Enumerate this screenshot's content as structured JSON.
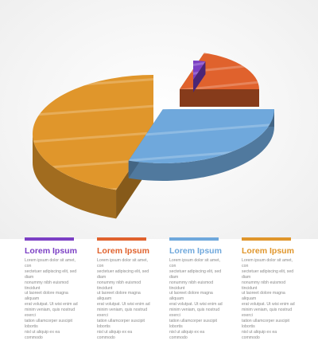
{
  "chart_data": {
    "type": "pie",
    "style": "3d-exploded-stacked",
    "slices": [
      {
        "name": "Lorem Ipsum",
        "value": 5,
        "color": "#7B3FC4"
      },
      {
        "name": "Lorem Ipsum",
        "value": 20,
        "color": "#E0622D"
      },
      {
        "name": "Lorem Ipsum",
        "value": 30,
        "color": "#6FA8DC"
      },
      {
        "name": "Lorem Ipsum",
        "value": 45,
        "color": "#E0962B"
      }
    ]
  },
  "legend": [
    {
      "title": "Lorem Ipsum",
      "color": "#7B3FC4",
      "text": "Lorem ipsum dolor sit amet, con\nsectetuer adipiscing elit, sed diam\nnonummy nibh euismod tincidunt\nut laoreet dolore magna aliquam\nerat volutpat. Ut wisi enim ad\nminim veniam, quis nostrud exerci\ntation ullamcorper suscipit lobortis\nnisl ut aliquip ex ea commodo"
    },
    {
      "title": "Lorem Ipsum",
      "color": "#E0622D",
      "text": "Lorem ipsum dolor sit amet, con\nsectetuer adipiscing elit, sed diam\nnonummy nibh euismod tincidunt\nut laoreet dolore magna aliquam\nerat volutpat. Ut wisi enim ad\nminim veniam, quis nostrud exerci\ntation ullamcorper suscipit lobortis\nnisl ut aliquip ex ea commodo"
    },
    {
      "title": "Lorem Ipsum",
      "color": "#6FA8DC",
      "text": "Lorem ipsum dolor sit amet, con\nsectetuer adipiscing elit, sed diam\nnonummy nibh euismod tincidunt\nut laoreet dolore magna aliquam\nerat volutpat. Ut wisi enim ad\nminim veniam, quis nostrud exerci\ntation ullamcorper suscipit lobortis\nnisl ut aliquip ex ea commodo"
    },
    {
      "title": "Lorem Ipsum",
      "color": "#E0962B",
      "text": "Lorem ipsum dolor sit amet, con\nsectetuer adipiscing elit, sed diam\nnonummy nibh euismod tincidunt\nut laoreet dolore magna aliquam\nerat volutpat. Ut wisi enim ad\nminim veniam, quis nostrud exerci\ntation ullamcorper suscipit lobortis\nnisl ut aliquip ex ea commodo"
    }
  ]
}
